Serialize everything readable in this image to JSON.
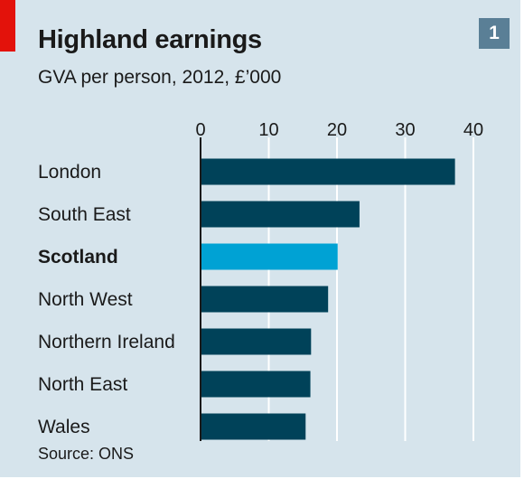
{
  "colors": {
    "background": "#d6e4ec",
    "bar": "#004259",
    "highlight_bar": "#00a2d4",
    "accent": "#e3120b",
    "badge": "#5a7f96",
    "gridline": "#ffffff"
  },
  "header": {
    "title": "Highland earnings",
    "subtitle": "GVA per person, 2012, £’000",
    "badge": "1"
  },
  "footer": {
    "source": "Source: ONS"
  },
  "chart_data": {
    "type": "bar",
    "orientation": "horizontal",
    "title": "Highland earnings",
    "subtitle": "GVA per person, 2012, £’000",
    "categories": [
      "London",
      "South East",
      "Scotland",
      "North West",
      "Northern Ireland",
      "North East",
      "Wales"
    ],
    "values": [
      37.3,
      23.3,
      20.1,
      18.7,
      16.2,
      16.1,
      15.4
    ],
    "highlight": "Scotland",
    "xlim": [
      0,
      40
    ],
    "ticks": [
      0,
      10,
      20,
      30,
      40
    ],
    "tick_labels": [
      "0",
      "10",
      "20",
      "30",
      "40"
    ],
    "axis_position": "top",
    "grid": true
  }
}
